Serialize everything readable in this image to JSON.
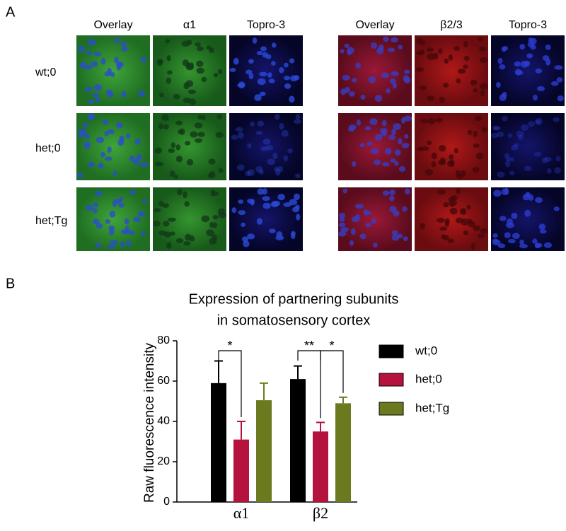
{
  "panel_a": {
    "label": "A",
    "groups": [
      {
        "columns": [
          "Overlay",
          "α1",
          "Topro-3"
        ]
      },
      {
        "columns": [
          "Overlay",
          "β2/3",
          "Topro-3"
        ]
      }
    ],
    "rows": [
      "wt;0",
      "het;0",
      "het;Tg"
    ]
  },
  "panel_b": {
    "label": "B"
  },
  "chart_data": {
    "type": "bar",
    "title": [
      "Expression of partnering subunits",
      "in somatosensory cortex"
    ],
    "y_label": "Raw fluorescence intensity",
    "categories": [
      "α1",
      "β2"
    ],
    "series": [
      {
        "name": "wt;0",
        "color": "#000000",
        "values": [
          59,
          61
        ],
        "errors": [
          11,
          6.5
        ]
      },
      {
        "name": "het;0",
        "color": "#b5123e",
        "values": [
          31,
          35
        ],
        "errors": [
          9,
          4.5
        ]
      },
      {
        "name": "het;Tg",
        "color": "#6b7a1e",
        "values": [
          50.5,
          49
        ],
        "errors": [
          8.5,
          3
        ]
      }
    ],
    "annotations": [
      "*",
      "**",
      "*"
    ],
    "ylim": [
      0,
      80
    ],
    "yticks": [
      0,
      20,
      40,
      60,
      80
    ]
  }
}
